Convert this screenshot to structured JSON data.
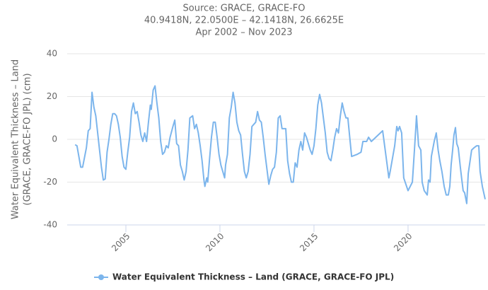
{
  "chart_data": {
    "type": "line",
    "title": [
      "Source: GRACE, GRACE-FO",
      "40.9418N, 22.0500E – 42.1418N, 26.6625E",
      "Apr 2002 – Nov 2023"
    ],
    "y_label": [
      "Water Equivalent Thickness – Land",
      "(GRACE, GRACE-FO JPL) (cm)"
    ],
    "x": [
      2002.3,
      2002.4,
      2002.6,
      2002.7,
      2002.9,
      2003.0,
      2003.1,
      2003.2,
      2003.3,
      2003.4,
      2003.5,
      2003.6,
      2003.7,
      2003.8,
      2003.9,
      2004.0,
      2004.1,
      2004.2,
      2004.3,
      2004.4,
      2004.5,
      2004.6,
      2004.7,
      2004.8,
      2004.9,
      2005.0,
      2005.1,
      2005.2,
      2005.3,
      2005.4,
      2005.5,
      2005.6,
      2005.7,
      2005.8,
      2005.9,
      2006.0,
      2006.1,
      2006.2,
      2006.3,
      2006.35,
      2006.45,
      2006.55,
      2006.65,
      2006.75,
      2006.85,
      2006.95,
      2007.05,
      2007.15,
      2007.25,
      2007.35,
      2007.5,
      2007.6,
      2007.7,
      2007.8,
      2007.9,
      2008.0,
      2008.1,
      2008.2,
      2008.3,
      2008.4,
      2008.55,
      2008.65,
      2008.75,
      2008.85,
      2008.95,
      2009.05,
      2009.15,
      2009.2,
      2009.3,
      2009.35,
      2009.45,
      2009.55,
      2009.65,
      2009.75,
      2009.85,
      2009.95,
      2010.05,
      2010.15,
      2010.25,
      2010.3,
      2010.4,
      2010.5,
      2010.6,
      2010.7,
      2010.8,
      2010.9,
      2011.0,
      2011.1,
      2011.2,
      2011.3,
      2011.4,
      2011.5,
      2011.6,
      2011.7,
      2011.8,
      2011.9,
      2012.0,
      2012.1,
      2012.2,
      2012.3,
      2012.4,
      2012.5,
      2012.6,
      2012.7,
      2012.8,
      2012.9,
      2013.0,
      2013.1,
      2013.2,
      2013.3,
      2013.4,
      2013.5,
      2013.6,
      2013.7,
      2013.8,
      2013.9,
      2014.0,
      2014.1,
      2014.2,
      2014.3,
      2014.4,
      2014.5,
      2014.6,
      2014.7,
      2014.8,
      2014.9,
      2015.0,
      2015.1,
      2015.2,
      2015.3,
      2015.4,
      2015.5,
      2015.6,
      2015.7,
      2015.8,
      2015.9,
      2016.0,
      2016.1,
      2016.2,
      2016.3,
      2016.4,
      2016.5,
      2016.6,
      2016.7,
      2016.8,
      2016.9,
      2017.0,
      2017.3,
      2017.5,
      2017.6,
      2017.8,
      2017.9,
      2018.05,
      2018.65,
      2018.98,
      2019.05,
      2019.29,
      2019.4,
      2019.47,
      2019.55,
      2019.66,
      2019.77,
      2020.0,
      2020.23,
      2020.34,
      2020.41,
      2020.45,
      2020.56,
      2020.68,
      2020.75,
      2020.86,
      2021.02,
      2021.09,
      2021.17,
      2021.24,
      2021.39,
      2021.5,
      2021.6,
      2021.69,
      2021.8,
      2021.92,
      2022.03,
      2022.14,
      2022.22,
      2022.29,
      2022.37,
      2022.44,
      2022.52,
      2022.59,
      2022.67,
      2022.78,
      2022.86,
      2022.93,
      2023.01,
      2023.12,
      2023.2,
      2023.38,
      2023.5,
      2023.65,
      2023.76,
      2023.83,
      2023.95,
      2024.1
    ],
    "series": [
      {
        "name": "Water Equivalent Thickness – Land (GRACE, GRACE-FO JPL)",
        "color": "#7cb5ec",
        "values": [
          -2.5,
          -3,
          -13,
          -13,
          -4,
          4,
          5,
          22,
          15,
          11,
          3,
          -5,
          -13,
          -19,
          -18.5,
          -6,
          0,
          7,
          12,
          12,
          11,
          7,
          1,
          -8,
          -13,
          -14,
          -6,
          1,
          13,
          17,
          12,
          13,
          8,
          2,
          -1,
          3,
          -1,
          8,
          16,
          14,
          23,
          25,
          17,
          10,
          -1,
          -7,
          -6,
          -3,
          -4,
          1,
          6,
          9,
          -2,
          -3,
          -12,
          -15,
          -19,
          -15,
          -5,
          10,
          11,
          5,
          7,
          3,
          -3,
          -10,
          -19,
          -22,
          -18,
          -20,
          -9,
          1,
          8,
          8,
          1,
          -7,
          -12,
          -15,
          -18,
          -12,
          -7,
          10,
          15,
          22,
          17,
          8,
          4,
          2,
          -7,
          -15,
          -18,
          -15,
          -7,
          6,
          7,
          8,
          13,
          9,
          8,
          1,
          -7,
          -14,
          -21,
          -17,
          -14,
          -13,
          -6,
          10,
          11,
          5,
          5,
          5,
          -10,
          -16,
          -20,
          -20,
          -11,
          -13,
          -5,
          -1,
          -5,
          3,
          1,
          -2,
          -5,
          -7,
          -3,
          5,
          16,
          21,
          17,
          10,
          3,
          -6,
          -9,
          -10,
          -5,
          1,
          5,
          3,
          11,
          17,
          13,
          10,
          10,
          1,
          -8,
          -7,
          -6,
          -1,
          -1,
          1,
          -1,
          4,
          -18,
          -15,
          -3,
          6,
          4,
          6,
          3,
          -18,
          -24,
          -20,
          -5,
          5,
          11,
          -3,
          -5,
          -20,
          -24,
          -26,
          -19,
          -20,
          -8,
          -1,
          3,
          -5,
          -10,
          -15,
          -22,
          -26,
          -26,
          -22,
          -12,
          -5,
          2,
          5.5,
          -2,
          -4,
          -13,
          -19,
          -24,
          -25,
          -30,
          -16,
          -5,
          -4,
          -3,
          -3,
          -15,
          -22,
          -28
        ]
      }
    ],
    "xlim": [
      2001.88,
      2024.1
    ],
    "xticks": [
      2005,
      2010,
      2015,
      2020
    ],
    "ylim": [
      -40,
      40
    ],
    "yticks": [
      -40,
      -20,
      0,
      20,
      40
    ],
    "grid": true,
    "legend": "bottom"
  }
}
